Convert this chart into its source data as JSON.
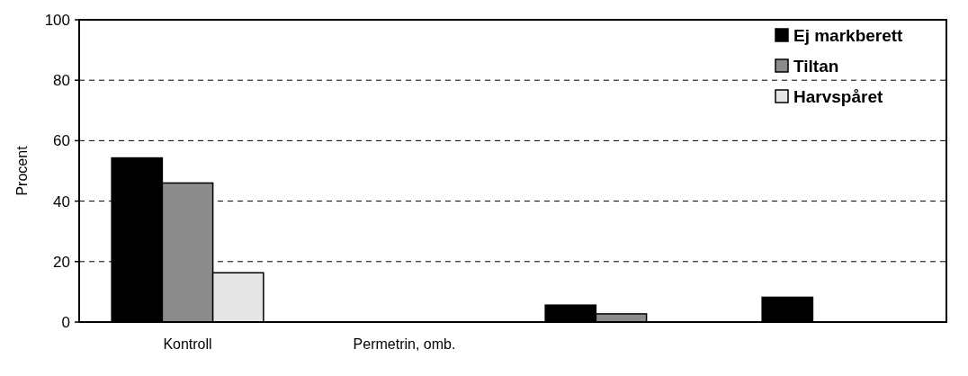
{
  "chart_data": {
    "type": "bar",
    "ylabel": "Procent",
    "categories": [
      "Kontroll",
      "Permetrin, omb.",
      null,
      null
    ],
    "series": [
      {
        "name": "Ej markberett",
        "color": "#000000",
        "values": [
          54.3,
          0,
          5.6,
          8.2
        ]
      },
      {
        "name": "Tiltan",
        "color": "#8c8c8c",
        "values": [
          46,
          0,
          2.7,
          0
        ]
      },
      {
        "name": "Harvspåret",
        "color": "#e6e6e6",
        "values": [
          16.3,
          0,
          0,
          0
        ]
      }
    ],
    "ylim": [
      0,
      100
    ],
    "yticks": [
      0,
      20,
      40,
      60,
      80,
      100
    ],
    "grid": "y",
    "legend": "top right"
  }
}
